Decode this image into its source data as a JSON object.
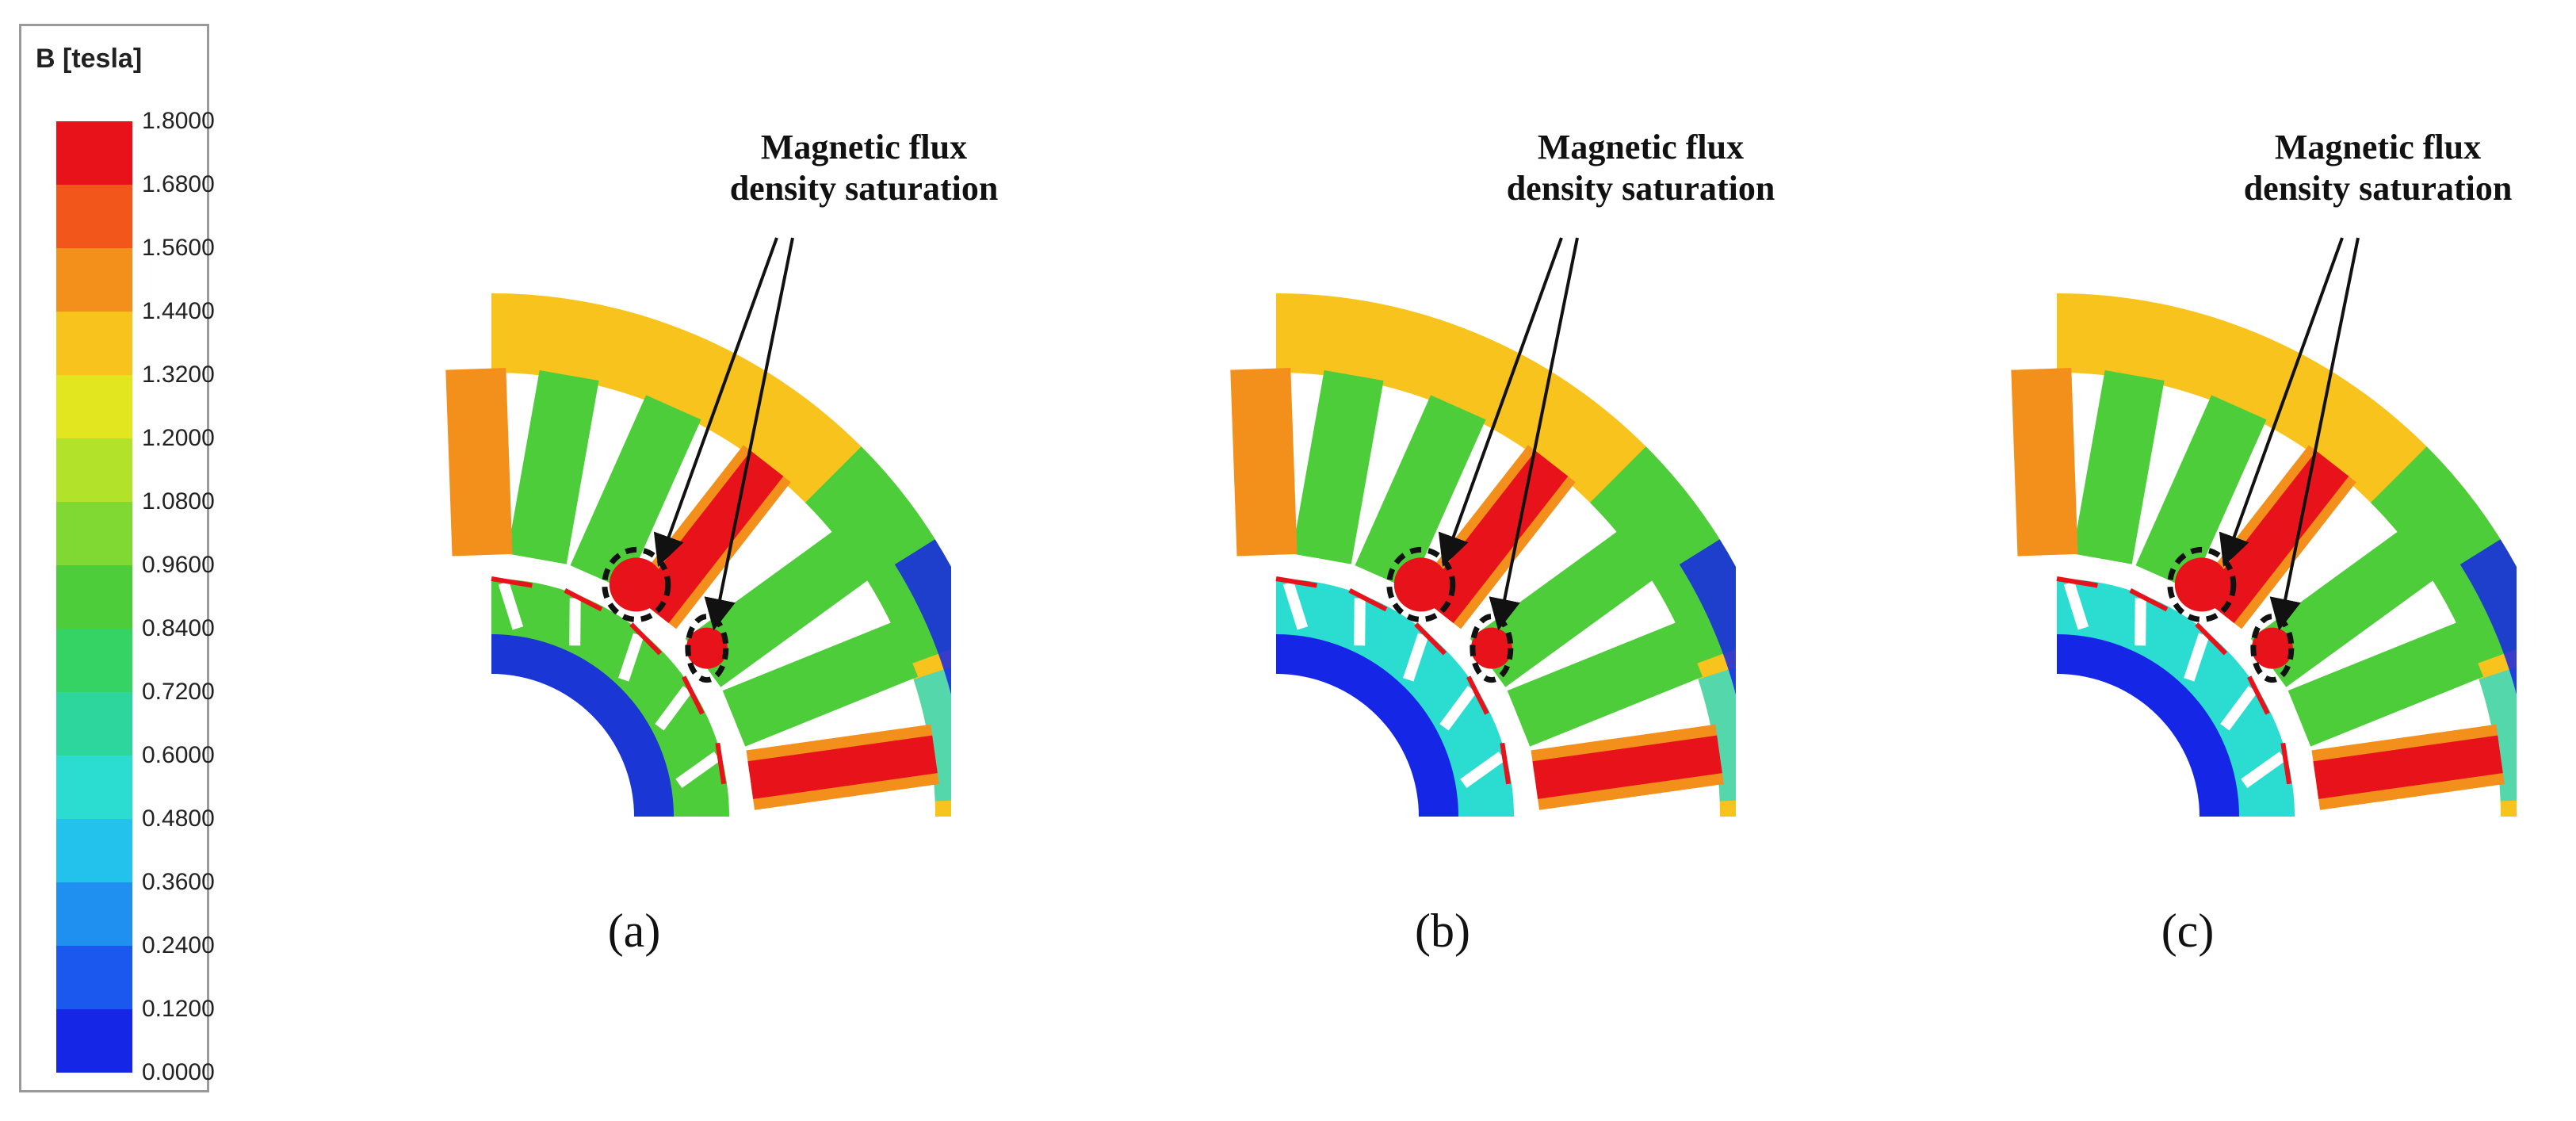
{
  "legend": {
    "title": "B [tesla]",
    "ticks": [
      "1.8000",
      "1.6800",
      "1.5600",
      "1.4400",
      "1.3200",
      "1.2000",
      "1.0800",
      "0.9600",
      "0.8400",
      "0.7200",
      "0.6000",
      "0.4800",
      "0.3600",
      "0.2400",
      "0.1200",
      "0.0000"
    ],
    "colors": [
      "#e8131a",
      "#f2561a",
      "#f3901c",
      "#f7c31c",
      "#e1e61f",
      "#b2e22a",
      "#7fd932",
      "#4dcd3a",
      "#35d264",
      "#2dd69c",
      "#2bdcd0",
      "#22c2ec",
      "#1f8ff0",
      "#1b59ee",
      "#1526e6"
    ]
  },
  "panels": [
    {
      "caption": "(a)",
      "annotation": [
        "Magnetic flux",
        "density saturation"
      ]
    },
    {
      "caption": "(b)",
      "annotation": [
        "Magnetic flux",
        "density saturation"
      ]
    },
    {
      "caption": "(c)",
      "annotation": [
        "Magnetic flux",
        "density saturation"
      ]
    }
  ],
  "palette": {
    "blue": "#1526e6",
    "cyan": "#2bdcd0",
    "green": "#4dcd3a",
    "yellow": "#f7c31c",
    "orange": "#f3901c",
    "red": "#e8131a"
  }
}
